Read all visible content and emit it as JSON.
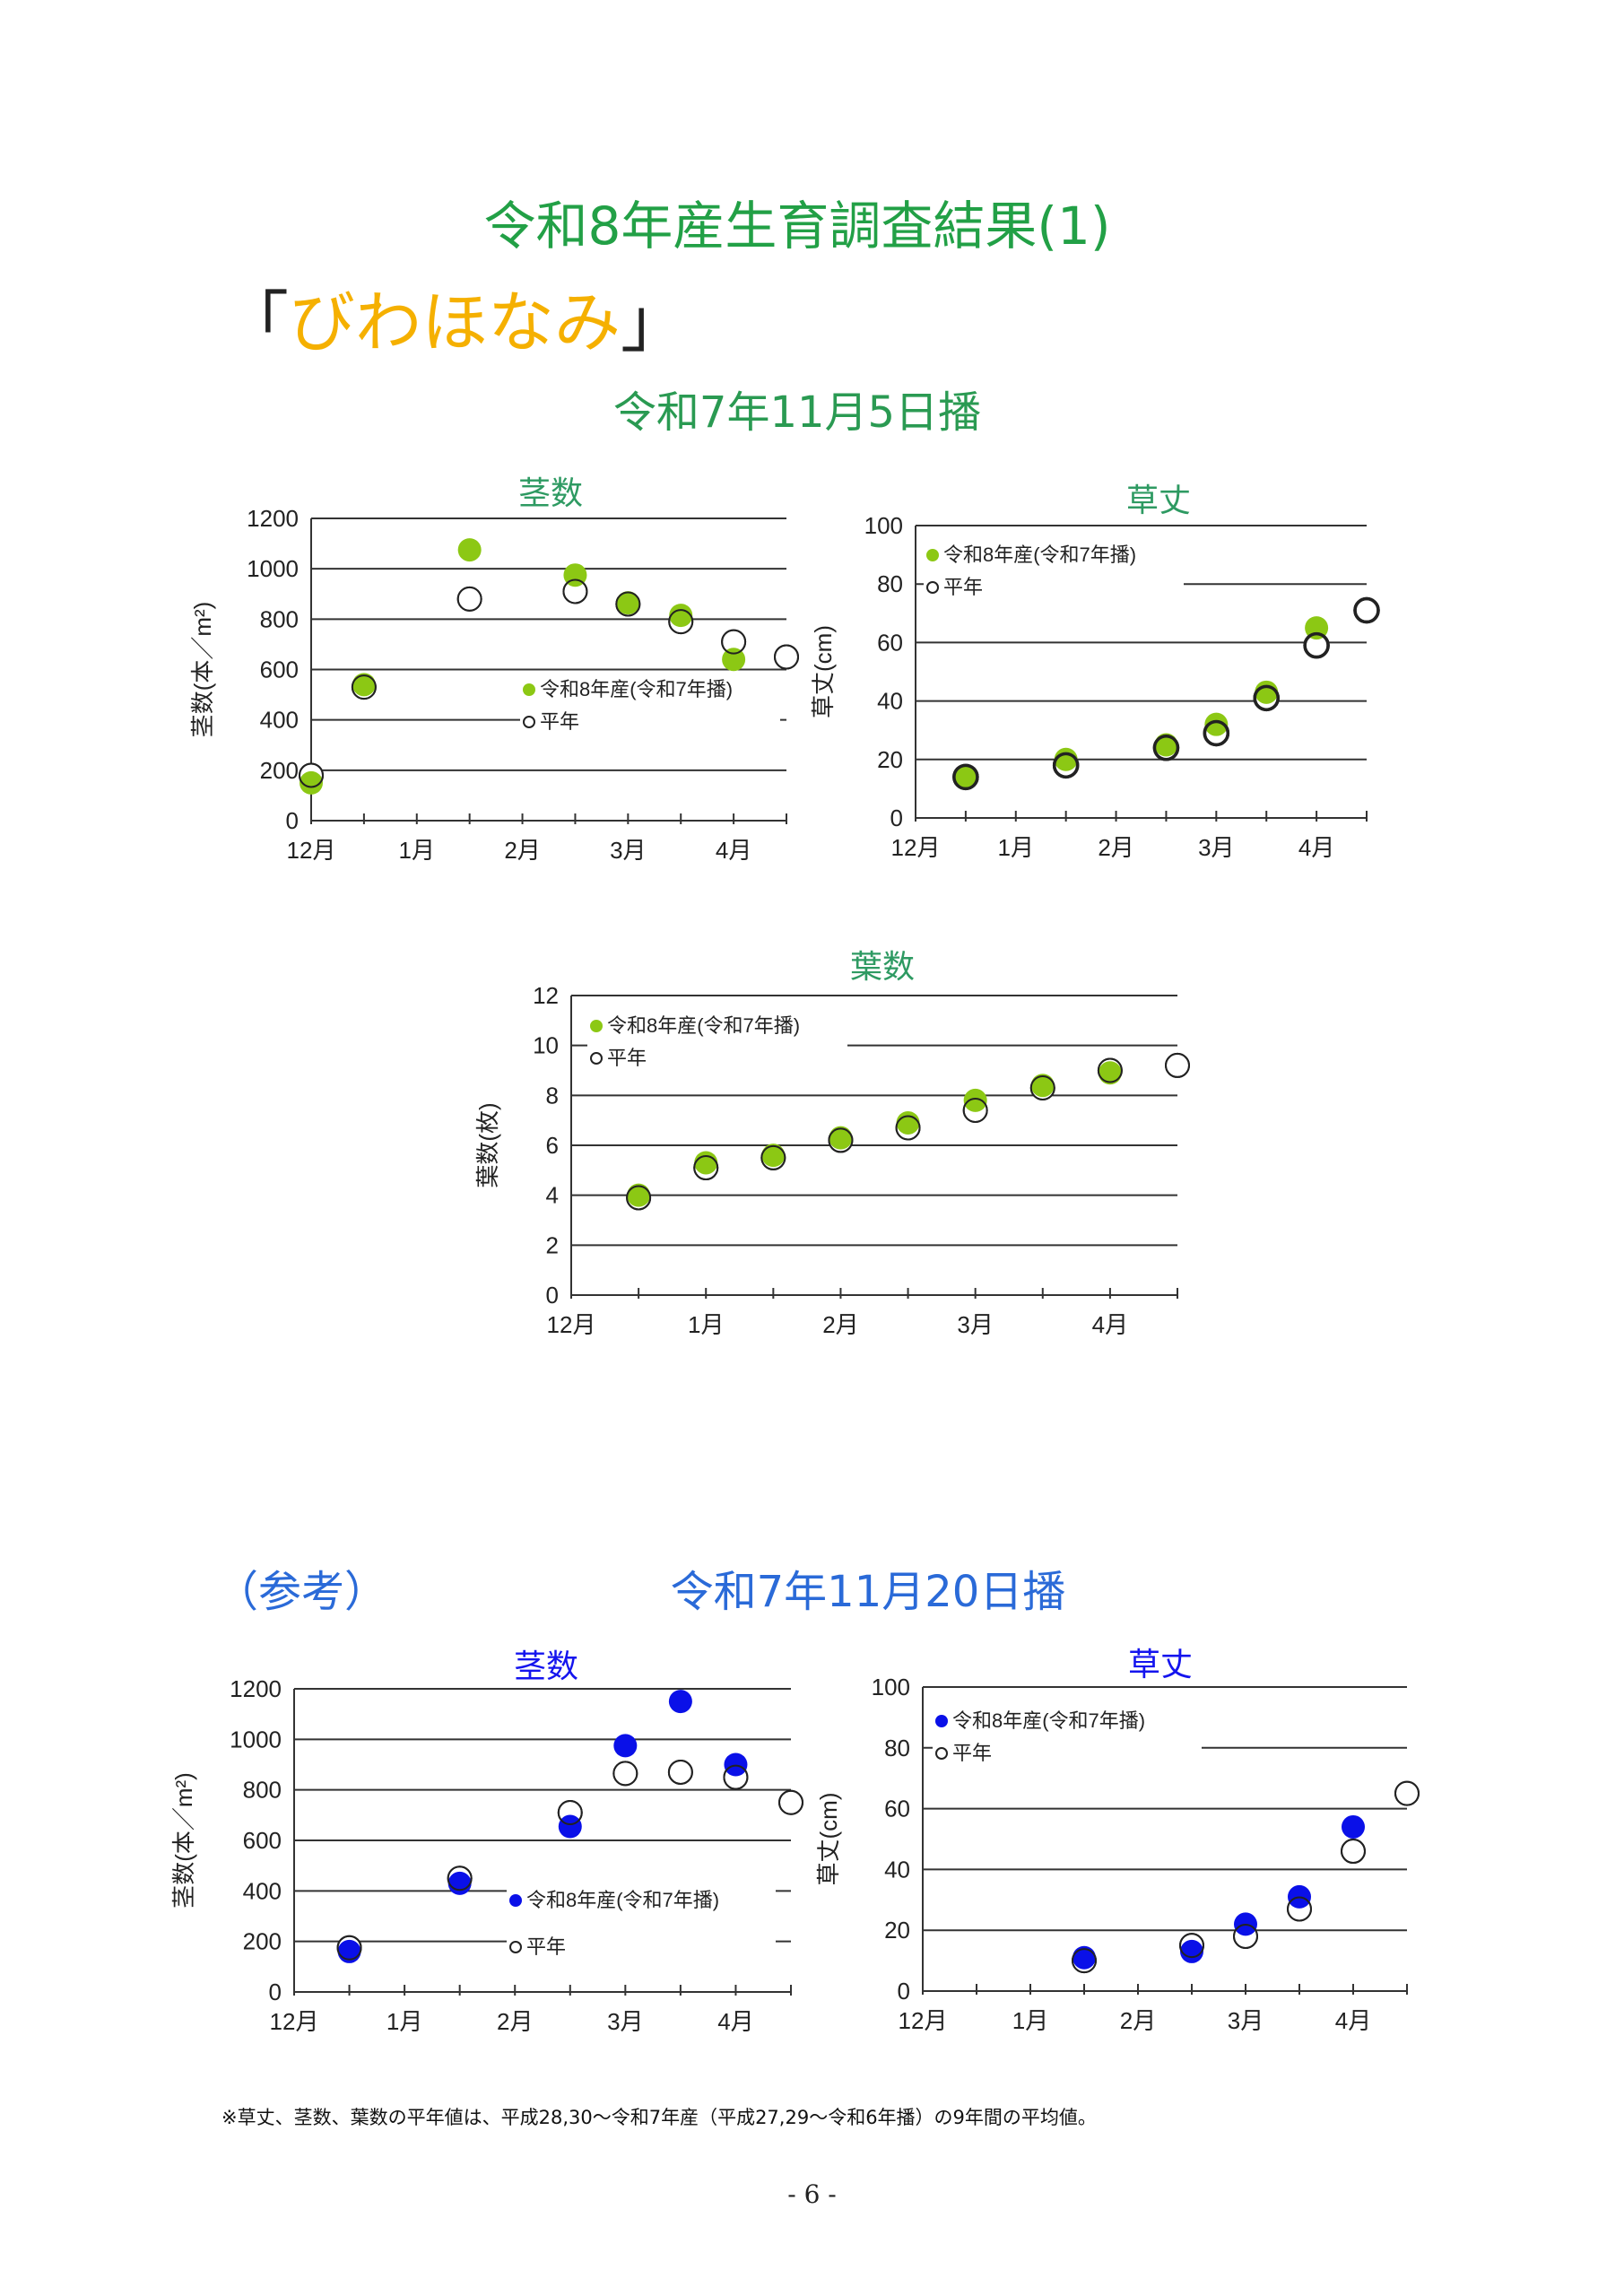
{
  "header": {
    "title": "令和8年産生育調査結果(1)",
    "variety_open": "「",
    "variety": "びわほなみ",
    "variety_close": "」",
    "sowing_main": "令和7年11月5日播",
    "reference_label": "（参考）",
    "sowing_reference": "令和7年11月20日播"
  },
  "footnote": "※草丈、茎数、葉数の平年値は、平成28,30～令和7年産（平成27,29～令和6年播）の9年間の平均値。",
  "page_number": "- 6 -",
  "colors": {
    "green_marker": "#8cc814",
    "blue_marker": "#0a10e8",
    "green_title": "#2e9a62",
    "blue_title": "#1414ee"
  },
  "chart_data": [
    {
      "type": "scatter",
      "title": "茎数",
      "ylabel": "茎数(本／m²)",
      "ylim": [
        0,
        1200
      ],
      "yticks": [
        0,
        200,
        400,
        600,
        800,
        1000,
        1200
      ],
      "xlim": [
        0,
        4.5
      ],
      "xticks": [
        {
          "x": 0,
          "label": "12月"
        },
        {
          "x": 1,
          "label": "1月"
        },
        {
          "x": 2,
          "label": "2月"
        },
        {
          "x": 3,
          "label": "3月"
        },
        {
          "x": 4,
          "label": "4月"
        }
      ],
      "legend": "center-right",
      "grid": true,
      "series": [
        {
          "name": "令和8年産(令和7年播)",
          "style": "filled-green",
          "points": [
            [
              0,
              150
            ],
            [
              0.5,
              540
            ],
            [
              1.5,
              1075
            ],
            [
              2.5,
              975
            ],
            [
              3,
              865
            ],
            [
              3.5,
              815
            ],
            [
              4,
              640
            ]
          ]
        },
        {
          "name": "平年",
          "style": "open",
          "points": [
            [
              0,
              180
            ],
            [
              0.5,
              530
            ],
            [
              1.5,
              880
            ],
            [
              2.5,
              910
            ],
            [
              3,
              860
            ],
            [
              3.5,
              790
            ],
            [
              4,
              710
            ],
            [
              4.5,
              650
            ]
          ]
        }
      ]
    },
    {
      "type": "scatter",
      "title": "草丈",
      "ylabel": "草丈(cm)",
      "ylim": [
        0,
        100
      ],
      "yticks": [
        0,
        20,
        40,
        60,
        80,
        100
      ],
      "xlim": [
        0,
        4.5
      ],
      "xticks": [
        {
          "x": 0,
          "label": "12月"
        },
        {
          "x": 1,
          "label": "1月"
        },
        {
          "x": 2,
          "label": "2月"
        },
        {
          "x": 3,
          "label": "3月"
        },
        {
          "x": 4,
          "label": "4月"
        }
      ],
      "legend": "top-left",
      "grid": true,
      "series": [
        {
          "name": "令和8年産(令和7年播)",
          "style": "filled-green",
          "points": [
            [
              0.5,
              14
            ],
            [
              1.5,
              20
            ],
            [
              2.5,
              25
            ],
            [
              3,
              32
            ],
            [
              3.5,
              43
            ],
            [
              4,
              65
            ]
          ]
        },
        {
          "name": "平年",
          "style": "open-bold",
          "points": [
            [
              0.5,
              14
            ],
            [
              1.5,
              18
            ],
            [
              2.5,
              24
            ],
            [
              3,
              29
            ],
            [
              3.5,
              41
            ],
            [
              4,
              59
            ],
            [
              4.5,
              71
            ]
          ]
        }
      ]
    },
    {
      "type": "scatter",
      "title": "葉数",
      "ylabel": "葉数(枚)",
      "ylim": [
        0,
        12
      ],
      "yticks": [
        0,
        2,
        4,
        6,
        8,
        10,
        12
      ],
      "xlim": [
        0,
        4.5
      ],
      "xticks": [
        {
          "x": 0,
          "label": "12月"
        },
        {
          "x": 1,
          "label": "1月"
        },
        {
          "x": 2,
          "label": "2月"
        },
        {
          "x": 3,
          "label": "3月"
        },
        {
          "x": 4,
          "label": "4月"
        }
      ],
      "legend": "top-left",
      "grid": true,
      "series": [
        {
          "name": "令和8年産(令和7年播)",
          "style": "filled-green",
          "points": [
            [
              0.5,
              4.0
            ],
            [
              1,
              5.3
            ],
            [
              1.5,
              5.6
            ],
            [
              2,
              6.3
            ],
            [
              2.5,
              6.9
            ],
            [
              3,
              7.8
            ],
            [
              3.5,
              8.4
            ],
            [
              4,
              8.9
            ]
          ]
        },
        {
          "name": "平年",
          "style": "open",
          "points": [
            [
              0.5,
              3.9
            ],
            [
              1,
              5.1
            ],
            [
              1.5,
              5.5
            ],
            [
              2,
              6.2
            ],
            [
              2.5,
              6.7
            ],
            [
              3,
              7.4
            ],
            [
              3.5,
              8.3
            ],
            [
              4,
              9.0
            ],
            [
              4.5,
              9.2
            ]
          ]
        }
      ]
    },
    {
      "type": "scatter",
      "title": "茎数",
      "ylabel": "茎数(本／m²)",
      "ylim": [
        0,
        1200
      ],
      "yticks": [
        0,
        200,
        400,
        600,
        800,
        1000,
        1200
      ],
      "xlim": [
        0,
        4.5
      ],
      "xticks": [
        {
          "x": 0,
          "label": "12月"
        },
        {
          "x": 1,
          "label": "1月"
        },
        {
          "x": 2,
          "label": "2月"
        },
        {
          "x": 3,
          "label": "3月"
        },
        {
          "x": 4,
          "label": "4月"
        }
      ],
      "legend": "center-right",
      "grid": true,
      "series": [
        {
          "name": "令和8年産(令和7年播)",
          "style": "filled-blue",
          "points": [
            [
              0.5,
              160
            ],
            [
              1.5,
              430
            ],
            [
              2.5,
              655
            ],
            [
              3,
              975
            ],
            [
              3.5,
              1150
            ],
            [
              4,
              900
            ]
          ]
        },
        {
          "name": "平年",
          "style": "open",
          "points": [
            [
              0.5,
              175
            ],
            [
              1.5,
              450
            ],
            [
              2.5,
              710
            ],
            [
              3,
              865
            ],
            [
              3.5,
              870
            ],
            [
              4,
              850
            ],
            [
              4.5,
              750
            ]
          ]
        }
      ]
    },
    {
      "type": "scatter",
      "title": "草丈",
      "ylabel": "草丈(cm)",
      "ylim": [
        0,
        100
      ],
      "yticks": [
        0,
        20,
        40,
        60,
        80,
        100
      ],
      "xlim": [
        0,
        4.5
      ],
      "xticks": [
        {
          "x": 0,
          "label": "12月"
        },
        {
          "x": 1,
          "label": "1月"
        },
        {
          "x": 2,
          "label": "2月"
        },
        {
          "x": 3,
          "label": "3月"
        },
        {
          "x": 4,
          "label": "4月"
        }
      ],
      "legend": "top-left",
      "grid": true,
      "series": [
        {
          "name": "令和8年産(令和7年播)",
          "style": "filled-blue",
          "points": [
            [
              1.5,
              11
            ],
            [
              2.5,
              13
            ],
            [
              3,
              22
            ],
            [
              3.5,
              31
            ],
            [
              4,
              54
            ]
          ]
        },
        {
          "name": "平年",
          "style": "open",
          "points": [
            [
              1.5,
              10
            ],
            [
              2.5,
              15
            ],
            [
              3,
              18
            ],
            [
              3.5,
              27
            ],
            [
              4,
              46
            ],
            [
              4.5,
              65
            ]
          ]
        }
      ]
    }
  ]
}
